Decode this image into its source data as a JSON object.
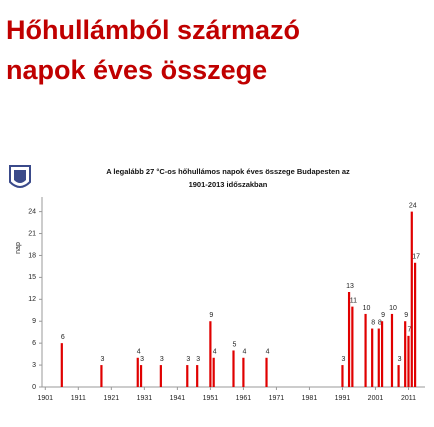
{
  "heading": {
    "line1": "Hőhullámból származó",
    "line2": "napok éves összege"
  },
  "chart_data": {
    "type": "bar",
    "title": "A legalább 27 °C-os hőhullámos napok éves összege Budapesten az",
    "subtitle": "1901-2013 időszakban",
    "y_label": "nap",
    "x": [
      1906,
      1918,
      1929,
      1930,
      1936,
      1944,
      1947,
      1951,
      1952,
      1958,
      1961,
      1968,
      1991,
      1993,
      1994,
      1998,
      2000,
      2002,
      2003,
      2006,
      2008,
      2010,
      2011,
      2012,
      2013
    ],
    "values": [
      6,
      3,
      4,
      3,
      3,
      3,
      3,
      9,
      4,
      5,
      4,
      4,
      3,
      13,
      11,
      10,
      8,
      8,
      9,
      10,
      3,
      9,
      7,
      24,
      17
    ],
    "color": "#e00000",
    "xlim": [
      1900,
      2016
    ],
    "xticks": [
      1901,
      1911,
      1921,
      1931,
      1941,
      1951,
      1961,
      1971,
      1981,
      1991,
      2001,
      2011
    ],
    "ylim": [
      0,
      26
    ],
    "yticks": [
      0,
      3,
      6,
      9,
      12,
      15,
      18,
      21,
      24
    ],
    "grid": false
  }
}
